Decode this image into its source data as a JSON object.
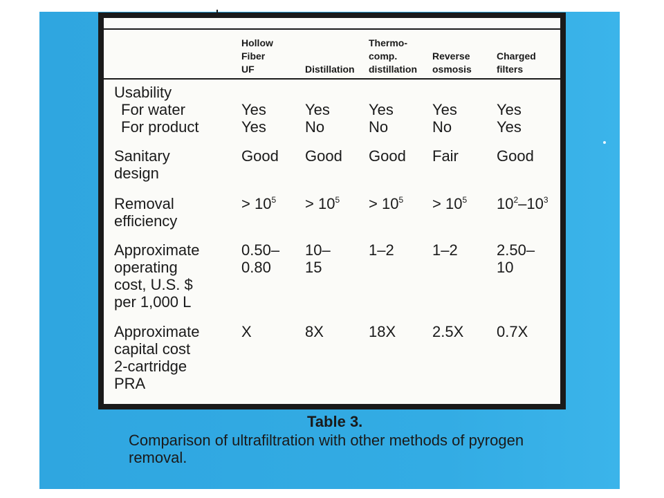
{
  "table": {
    "headers": {
      "hollow_fiber": [
        "Hollow",
        "Fiber",
        "UF"
      ],
      "distillation": [
        "Distillation"
      ],
      "thermo": [
        "Thermo-",
        "comp.",
        "distillation"
      ],
      "reverse": [
        "Reverse",
        "osmosis"
      ],
      "charged": [
        "Charged",
        "filters"
      ]
    },
    "rows": {
      "usability": {
        "label": "Usability",
        "water_label": "For water",
        "product_label": "For product",
        "water": [
          "Yes",
          "Yes",
          "Yes",
          "Yes",
          "Yes"
        ],
        "product": [
          "Yes",
          "No",
          "No",
          "No",
          "Yes"
        ]
      },
      "sanitary": {
        "label": [
          "Sanitary",
          "design"
        ],
        "values": [
          "Good",
          "Good",
          "Good",
          "Fair",
          "Good"
        ]
      },
      "removal": {
        "label": [
          "Removal",
          "efficiency"
        ],
        "values": [
          {
            "base": "> 10",
            "exp": "5"
          },
          {
            "base": "> 10",
            "exp": "5"
          },
          {
            "base": "> 10",
            "exp": "5"
          },
          {
            "base": "> 10",
            "exp": "5"
          },
          {
            "a": "10",
            "a_exp": "2",
            "dash": "–",
            "b": "10",
            "b_exp": "3"
          }
        ]
      },
      "operating": {
        "label": [
          "Approximate",
          "operating",
          "cost, U.S. $",
          "per 1,000 L"
        ],
        "values": [
          [
            "0.50–",
            "0.80"
          ],
          [
            "10–",
            "15"
          ],
          [
            "1–2"
          ],
          [
            "1–2"
          ],
          [
            "2.50–",
            "10"
          ]
        ]
      },
      "capital": {
        "label": [
          "Approximate",
          "capital cost",
          "2-cartridge",
          "PRA"
        ],
        "values": [
          "X",
          "8X",
          "18X",
          "2.5X",
          "0.7X"
        ]
      }
    }
  },
  "caption": {
    "title": "Table 3.",
    "text": "Comparison of ultrafiltration with other methods of pyrogen removal."
  },
  "colors": {
    "background_blue": "#33ace4",
    "frame": "#1a1a1a",
    "paper": "#fbfbf8"
  }
}
